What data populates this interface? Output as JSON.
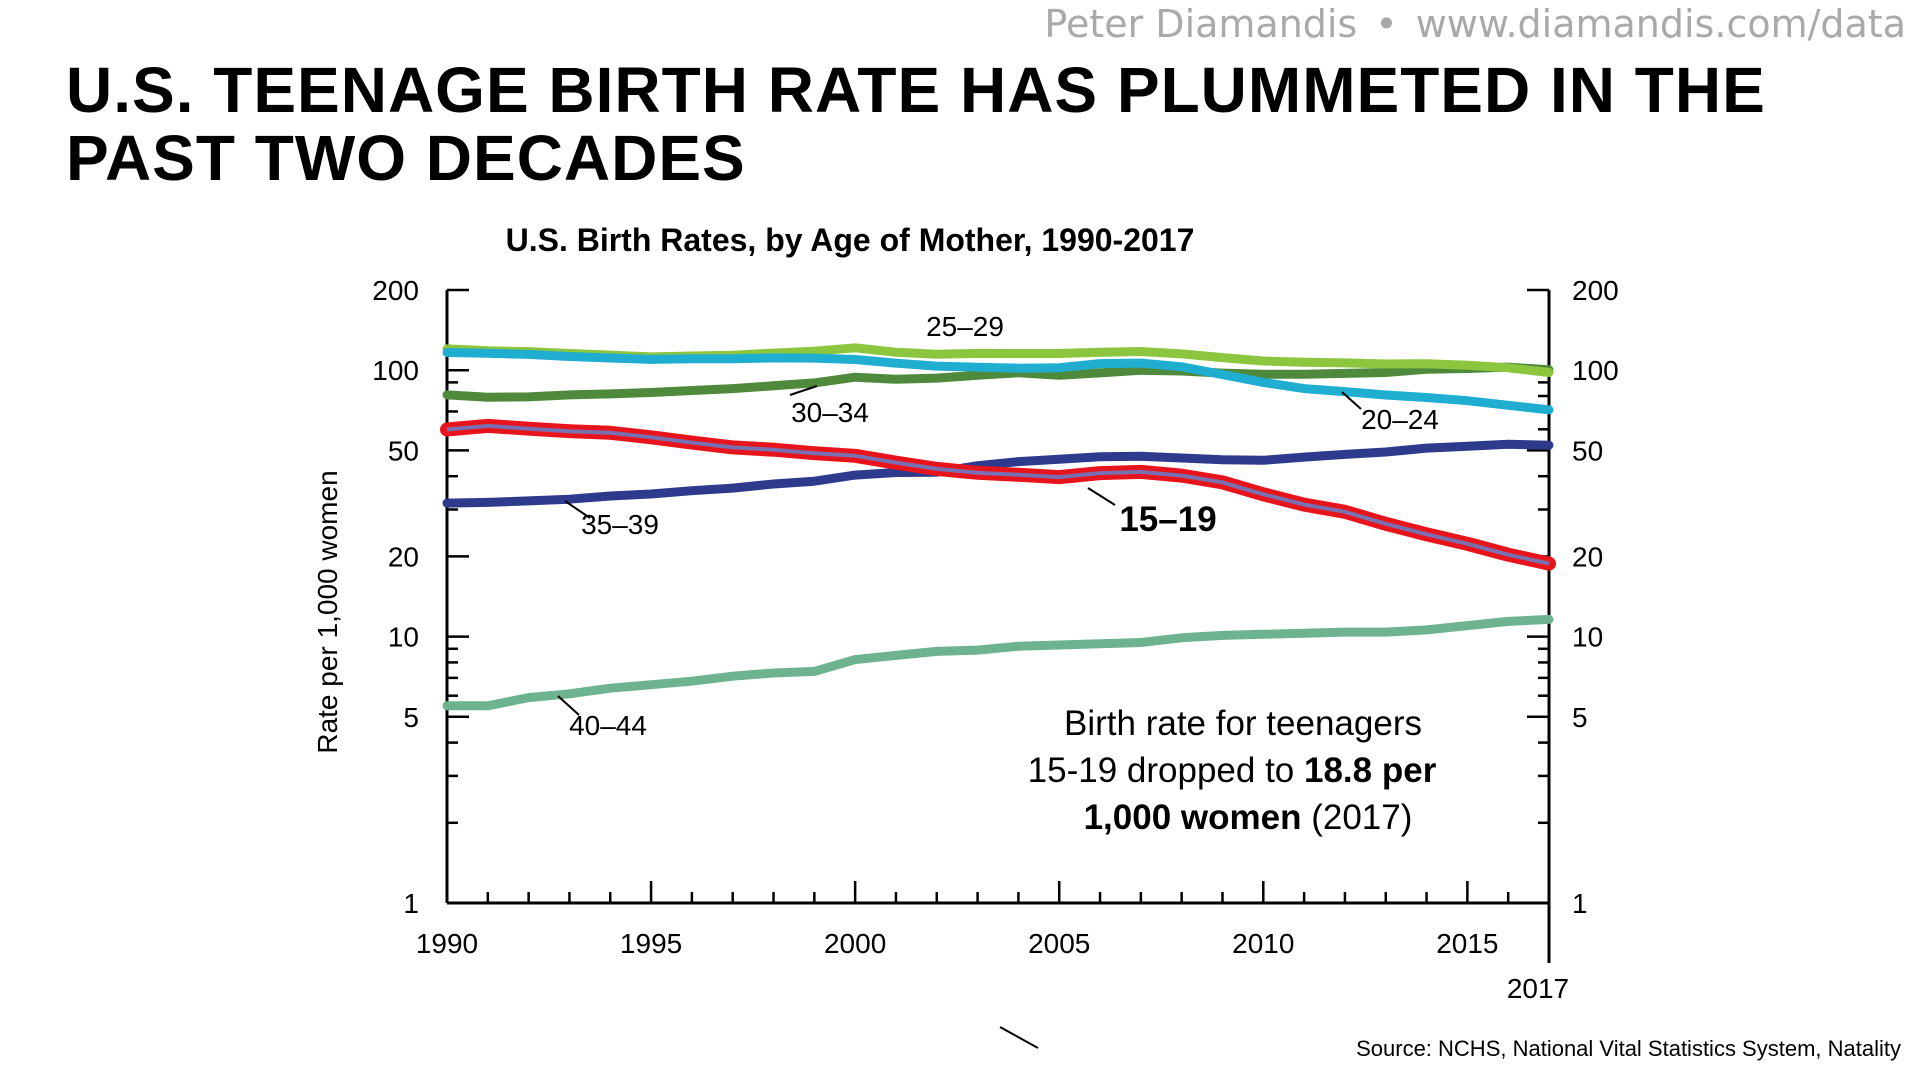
{
  "attribution": {
    "author": "Peter Diamandis",
    "separator": "•",
    "url": "www.diamandis.com/data"
  },
  "slide_title": "U.S. TEENAGE BIRTH RATE HAS PLUMMETED IN THE PAST TWO DECADES",
  "source": "Source: NCHS, National Vital Statistics System, Natality",
  "colors": {
    "age_15_19": "#e8141b",
    "age_15_19_center": "#7a6fb0",
    "age_20_24": "#1fadd0",
    "age_25_29": "#8cc63f",
    "age_30_34": "#4f8a3c",
    "age_35_39": "#2e3a8c",
    "age_40_44": "#6db38f"
  },
  "chart_data": {
    "type": "line",
    "title": "U.S. Birth Rates, by Age of Mother, 1990-2017",
    "ylabel": "Rate per 1,000 women",
    "xlabel": "",
    "y_scale": "log",
    "ylim": [
      1,
      200
    ],
    "xlim": [
      1990,
      2017
    ],
    "x_ticks": [
      "1990",
      "1995",
      "2000",
      "2005",
      "2010",
      "2015"
    ],
    "x_end_label": "2017",
    "y_ticks": [
      "1",
      "5",
      "10",
      "20",
      "50",
      "100",
      "200"
    ],
    "grid": false,
    "x": [
      1990,
      1991,
      1992,
      1993,
      1994,
      1995,
      1996,
      1997,
      1998,
      1999,
      2000,
      2001,
      2002,
      2003,
      2004,
      2005,
      2006,
      2007,
      2008,
      2009,
      2010,
      2011,
      2012,
      2013,
      2014,
      2015,
      2016,
      2017
    ],
    "series": [
      {
        "name": "15–19",
        "color_key": "age_15_19",
        "values": [
          59.9,
          61.8,
          60.3,
          59.0,
          58.2,
          56.0,
          53.5,
          51.3,
          50.3,
          48.8,
          47.7,
          45.0,
          42.6,
          41.2,
          40.5,
          39.7,
          41.1,
          41.5,
          40.2,
          37.9,
          34.2,
          31.3,
          29.4,
          26.5,
          24.2,
          22.3,
          20.3,
          18.8
        ]
      },
      {
        "name": "20–24",
        "color_key": "age_20_24",
        "values": [
          116.5,
          115.7,
          114.6,
          112.6,
          111.1,
          109.8,
          110.4,
          110.4,
          111.2,
          111.0,
          109.7,
          106.2,
          103.6,
          102.6,
          101.7,
          102.2,
          105.9,
          106.3,
          103.0,
          96.3,
          90.0,
          85.3,
          83.1,
          80.7,
          79.0,
          76.8,
          73.8,
          71.0
        ]
      },
      {
        "name": "25–29",
        "color_key": "age_25_29",
        "values": [
          120.2,
          118.2,
          117.4,
          115.5,
          113.9,
          112.2,
          113.1,
          113.8,
          115.9,
          117.8,
          121.4,
          116.7,
          114.7,
          115.6,
          115.5,
          115.5,
          116.7,
          117.5,
          115.1,
          111.5,
          108.3,
          107.2,
          106.5,
          105.5,
          105.8,
          104.3,
          102.1,
          98.0
        ]
      },
      {
        "name": "30–34",
        "color_key": "age_30_34",
        "values": [
          80.8,
          79.2,
          79.4,
          80.8,
          81.5,
          82.5,
          83.9,
          85.3,
          87.4,
          89.6,
          94.1,
          92.4,
          93.4,
          95.7,
          97.8,
          95.8,
          97.7,
          99.9,
          99.3,
          97.5,
          96.5,
          96.5,
          97.3,
          98.0,
          100.8,
          101.5,
          102.7,
          100.3
        ]
      },
      {
        "name": "35–39",
        "color_key": "age_35_39",
        "values": [
          31.7,
          31.9,
          32.3,
          32.8,
          33.7,
          34.3,
          35.3,
          36.1,
          37.4,
          38.3,
          40.4,
          41.3,
          41.4,
          43.8,
          45.4,
          46.3,
          47.3,
          47.5,
          46.8,
          46.1,
          45.9,
          47.2,
          48.3,
          49.3,
          51.0,
          51.8,
          52.7,
          52.3
        ]
      },
      {
        "name": "40–44",
        "color_key": "age_40_44",
        "values": [
          5.5,
          5.5,
          5.9,
          6.1,
          6.4,
          6.6,
          6.8,
          7.1,
          7.3,
          7.4,
          8.2,
          8.5,
          8.8,
          8.9,
          9.2,
          9.3,
          9.4,
          9.5,
          9.9,
          10.1,
          10.2,
          10.3,
          10.4,
          10.4,
          10.6,
          11.0,
          11.4,
          11.6
        ]
      }
    ],
    "annotation": {
      "line1": "Birth rate for teenagers",
      "line2_plain": "15-19 dropped to ",
      "line2_bold": "18.8 per",
      "line3_bold": "1,000 women",
      "line3_plain": " (2017)"
    }
  }
}
